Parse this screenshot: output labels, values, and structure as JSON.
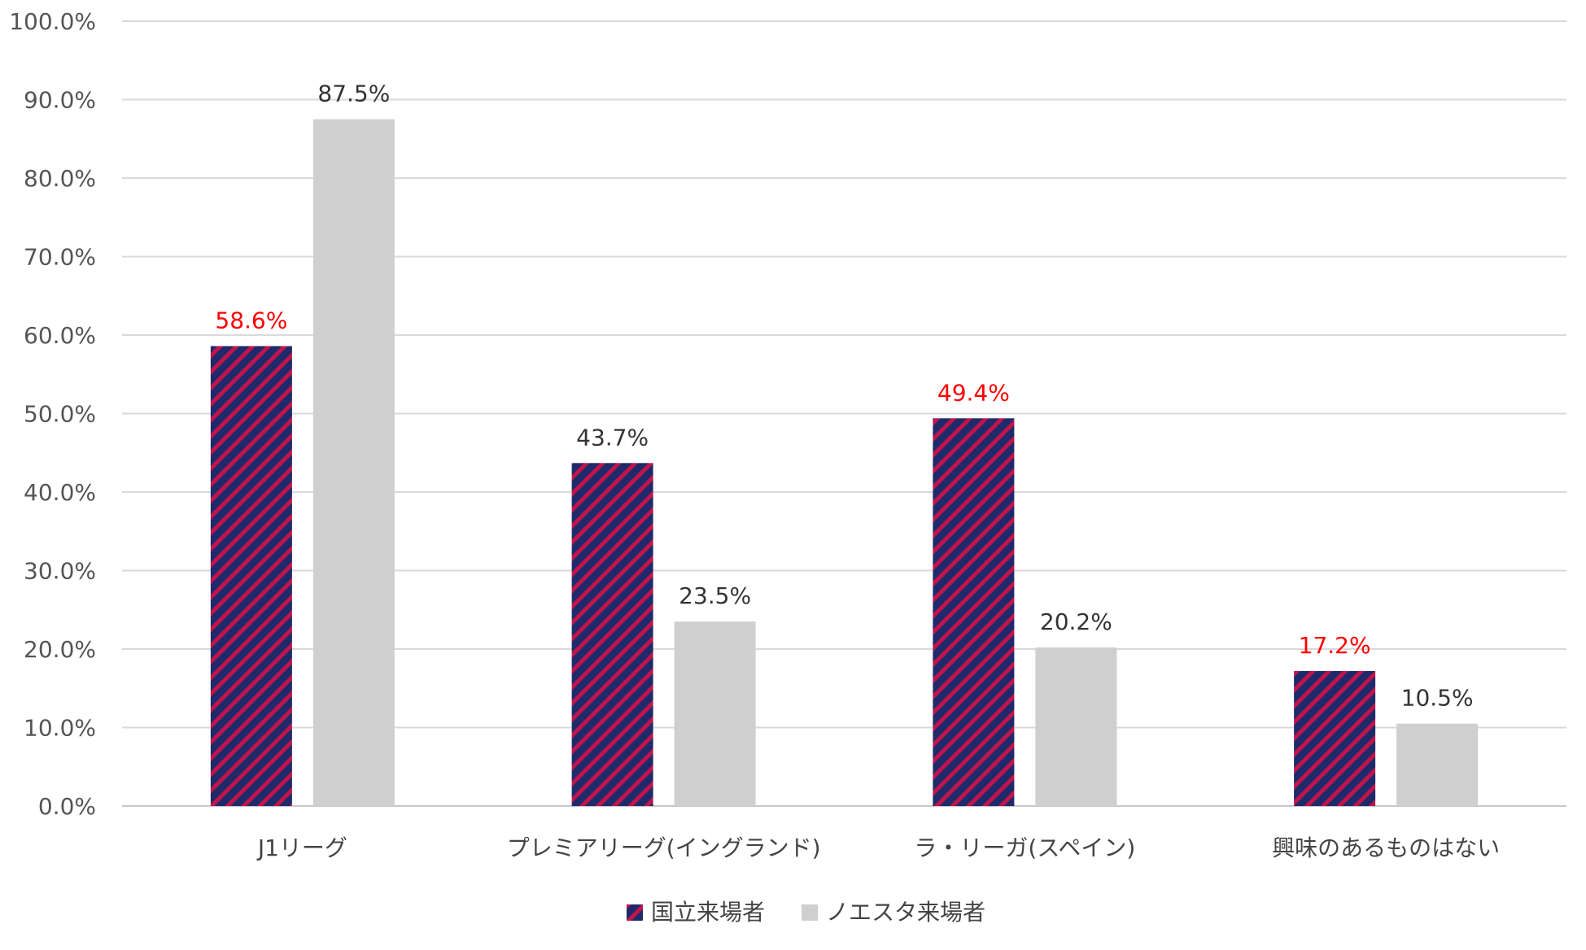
{
  "chart_data": {
    "type": "bar",
    "title": "",
    "xlabel": "",
    "ylabel": "",
    "ylim": [
      0,
      100
    ],
    "y_ticks": [
      "0.0%",
      "10.0%",
      "20.0%",
      "30.0%",
      "40.0%",
      "50.0%",
      "60.0%",
      "70.0%",
      "80.0%",
      "90.0%",
      "100.0%"
    ],
    "grid": true,
    "legend_position": "bottom",
    "categories": [
      "J1リーグ",
      "プレミアリーグ(イングランド)",
      "ラ・リーガ(スペイン)",
      "興味のあるものはない"
    ],
    "series": [
      {
        "name": "国立来場者",
        "values": [
          58.6,
          43.7,
          49.4,
          17.2
        ],
        "labels": [
          "58.6%",
          "43.7%",
          "49.4%",
          "17.2%"
        ],
        "label_colors": [
          "#ff0000",
          "#333333",
          "#ff0000",
          "#ff0000"
        ],
        "color": "#1f2a6b",
        "stripe_color": "#c0144c"
      },
      {
        "name": "ノエスタ来場者",
        "values": [
          87.5,
          23.5,
          20.2,
          10.5
        ],
        "labels": [
          "87.5%",
          "23.5%",
          "20.2%",
          "10.5%"
        ],
        "label_colors": [
          "#333333",
          "#333333",
          "#333333",
          "#333333"
        ],
        "color": "#d0cfd0"
      }
    ]
  }
}
